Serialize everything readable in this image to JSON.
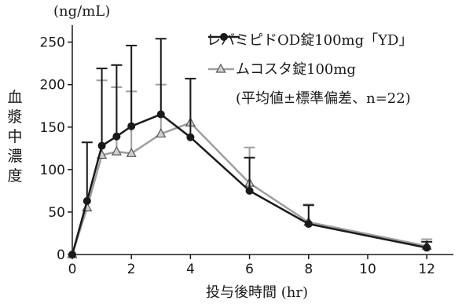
{
  "chart_data": {
    "type": "line",
    "ylabel": "血漿中濃度",
    "yunit": "(ng/mL)",
    "xlabel": "投与後時間 (hr)",
    "xlim": [
      0,
      12.9
    ],
    "ylim": [
      0,
      270
    ],
    "xticks": [
      0,
      2,
      4,
      6,
      8,
      10,
      12
    ],
    "yticks": [
      0,
      50,
      100,
      150,
      200,
      250
    ],
    "legend_position": "top-right",
    "legend_note": "(平均値±標準偏差、n=22)",
    "series": [
      {
        "name": "ムコスタ錠100mg",
        "color": "#9e9e9e",
        "marker": "triangle",
        "x": [
          0,
          0.5,
          1,
          1.5,
          2,
          3,
          4,
          6,
          8,
          12
        ],
        "y": [
          0,
          55,
          117,
          121,
          119,
          142,
          155,
          84,
          38,
          10
        ],
        "sd": [
          0,
          0,
          88,
          76,
          73,
          58,
          52,
          42,
          21,
          8
        ]
      },
      {
        "name": "レバミピドOD錠100mg「YD」",
        "color": "#1a1a1a",
        "marker": "circle",
        "x": [
          0,
          0.5,
          1,
          1.5,
          2,
          3,
          4,
          6,
          8,
          12
        ],
        "y": [
          0,
          63,
          128,
          139,
          151,
          165,
          138,
          75,
          36,
          8
        ],
        "sd": [
          0,
          69,
          91,
          84,
          95,
          89,
          69,
          39,
          22,
          7
        ]
      }
    ]
  }
}
